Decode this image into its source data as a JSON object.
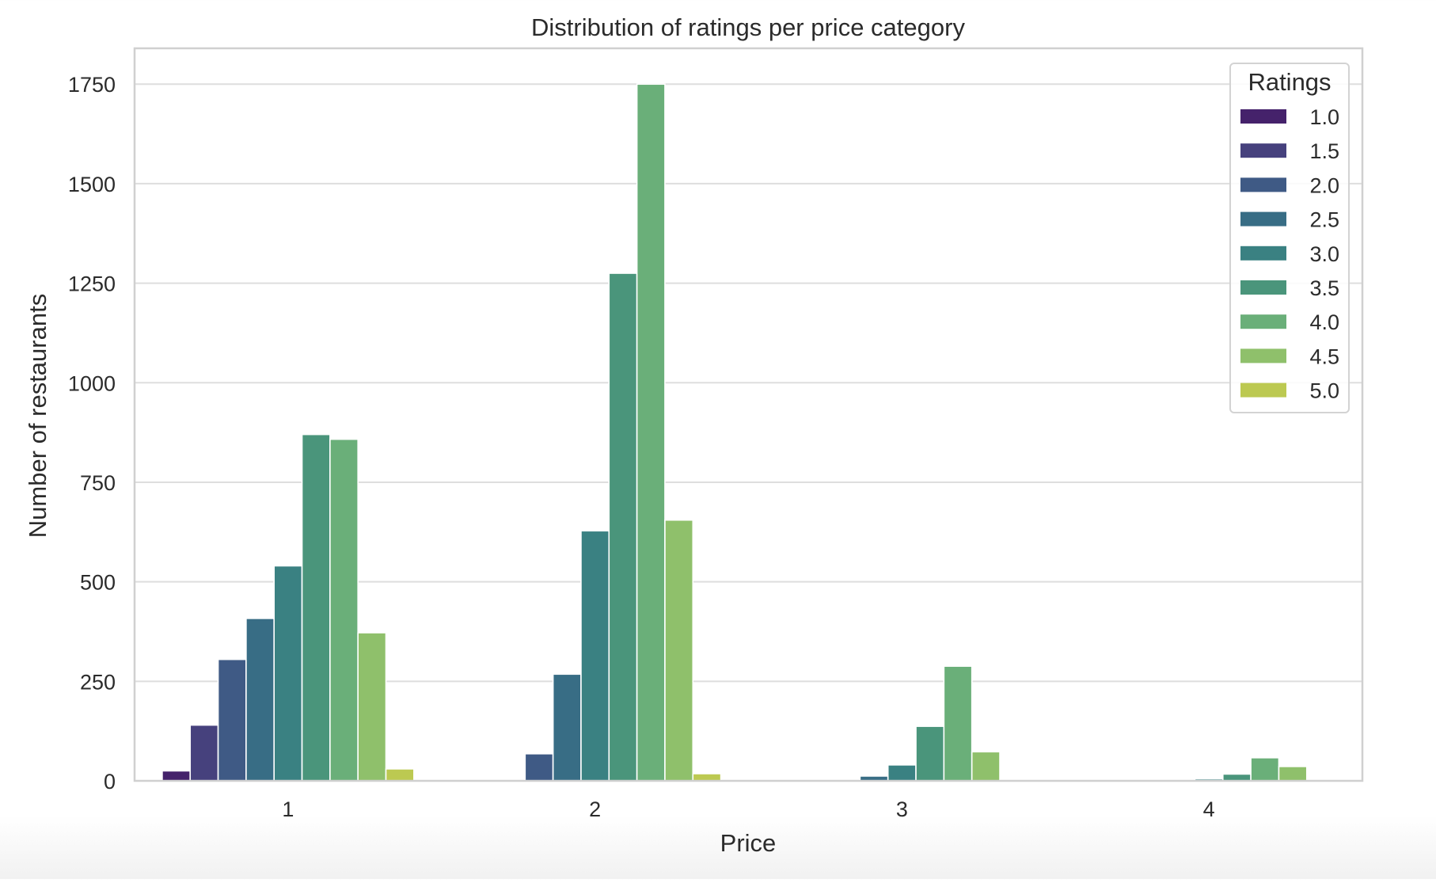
{
  "chart_data": {
    "type": "bar",
    "title": "Distribution of ratings per price category",
    "xlabel": "Price",
    "ylabel": "Number of restaurants",
    "categories": [
      "1",
      "2",
      "3",
      "4"
    ],
    "ylim": [
      0,
      1840
    ],
    "yticks": [
      0,
      250,
      500,
      750,
      1000,
      1250,
      1500,
      1750
    ],
    "grid": true,
    "legend": {
      "title": "Ratings",
      "placement": "top-right"
    },
    "series": [
      {
        "name": "1.0",
        "color": "#45226b",
        "values": [
          25,
          0,
          0,
          0
        ]
      },
      {
        "name": "1.5",
        "color": "#46417d",
        "values": [
          140,
          2,
          0,
          0
        ]
      },
      {
        "name": "2.0",
        "color": "#3f5a85",
        "values": [
          305,
          68,
          0,
          0
        ]
      },
      {
        "name": "2.5",
        "color": "#386d85",
        "values": [
          408,
          268,
          12,
          2
        ]
      },
      {
        "name": "3.0",
        "color": "#3a8182",
        "values": [
          540,
          628,
          40,
          5
        ]
      },
      {
        "name": "3.5",
        "color": "#4a957b",
        "values": [
          870,
          1275,
          137,
          17
        ]
      },
      {
        "name": "4.0",
        "color": "#6aaf79",
        "values": [
          858,
          1750,
          288,
          58
        ]
      },
      {
        "name": "4.5",
        "color": "#8fc06b",
        "values": [
          372,
          655,
          73,
          36
        ]
      },
      {
        "name": "5.0",
        "color": "#bcc951",
        "values": [
          30,
          18,
          0,
          0
        ]
      }
    ]
  }
}
